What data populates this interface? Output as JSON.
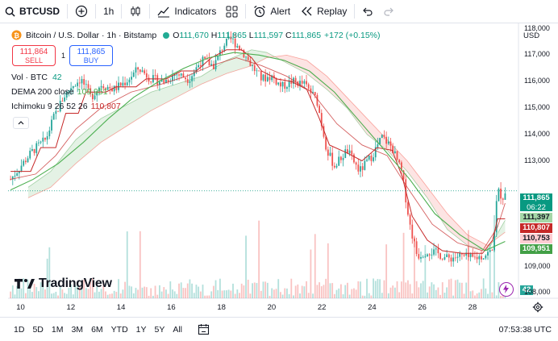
{
  "toolbar": {
    "symbol": "BTCUSD",
    "interval": "1h",
    "indicators_label": "Indicators",
    "alert_label": "Alert",
    "replay_label": "Replay"
  },
  "legend": {
    "instrument": "Bitcoin / U.S. Dollar · 1h · Bitstamp",
    "o_label": "O",
    "o": "111,670",
    "h_label": "H",
    "h": "111,865",
    "l_label": "L",
    "l": "111,597",
    "c_label": "C",
    "c": "111,865",
    "change": "+172 (+0.15%)",
    "vol_label": "Vol · BTC",
    "vol_value": "42",
    "dema_label": "DEMA 200 close",
    "dema_value": "109,951",
    "ichimoku_label": "Ichimoku 9 26 52 26",
    "ichimoku_value": "110,807"
  },
  "trade": {
    "sell_price": "111,864",
    "sell_label": "SELL",
    "spread": "1",
    "buy_price": "111,865",
    "buy_label": "BUY"
  },
  "currency": "USD",
  "watermark": "TradingView",
  "price_tags": {
    "last": "111,865",
    "countdown": "06:22",
    "base": "111,397",
    "conv": "110,807",
    "lag": "110,753",
    "dema": "109,951",
    "vol": "42"
  },
  "bottom": {
    "ranges": [
      "1D",
      "5D",
      "1M",
      "3M",
      "6M",
      "YTD",
      "1Y",
      "5Y",
      "All"
    ],
    "clock": "07:53:38 UTC"
  },
  "colors": {
    "up": "#26a69a",
    "down": "#ef5350",
    "dema": "#4caf50",
    "conv": "#c62828",
    "blue": "#2962ff"
  },
  "chart_data": {
    "type": "candlestick",
    "x_tick_labels": [
      "10",
      "12",
      "14",
      "16",
      "18",
      "20",
      "22",
      "24",
      "26",
      "28"
    ],
    "y_tick_labels": [
      "118,000",
      "117,000",
      "116,000",
      "115,000",
      "114,000",
      "113,000",
      "109,000",
      "108,000"
    ],
    "ylim": [
      107800,
      118200
    ],
    "x_range": [
      9.5,
      29.8
    ],
    "close_path": [
      [
        9.6,
        112.3
      ],
      [
        10.0,
        112.8
      ],
      [
        10.5,
        113.4
      ],
      [
        11.0,
        113.8
      ],
      [
        11.3,
        114.6
      ],
      [
        11.7,
        115.4
      ],
      [
        12.0,
        115.8
      ],
      [
        12.4,
        116.1
      ],
      [
        12.8,
        115.4
      ],
      [
        13.2,
        115.9
      ],
      [
        13.7,
        115.7
      ],
      [
        14.2,
        116.0
      ],
      [
        14.7,
        116.5
      ],
      [
        15.2,
        116.1
      ],
      [
        15.7,
        116.0
      ],
      [
        16.2,
        116.3
      ],
      [
        16.7,
        116.1
      ],
      [
        17.2,
        116.8
      ],
      [
        17.7,
        116.6
      ],
      [
        18.1,
        117.4
      ],
      [
        18.4,
        117.6
      ],
      [
        18.8,
        117.2
      ],
      [
        19.2,
        116.6
      ],
      [
        19.6,
        116.1
      ],
      [
        20.0,
        116.2
      ],
      [
        20.4,
        115.8
      ],
      [
        20.8,
        116.0
      ],
      [
        21.3,
        115.9
      ],
      [
        21.8,
        115.3
      ],
      [
        22.2,
        113.4
      ],
      [
        22.5,
        112.8
      ],
      [
        23.0,
        113.4
      ],
      [
        23.5,
        112.6
      ],
      [
        24.0,
        113.2
      ],
      [
        24.4,
        113.9
      ],
      [
        24.8,
        113.5
      ],
      [
        25.2,
        112.5
      ],
      [
        25.5,
        110.6
      ],
      [
        25.8,
        109.4
      ],
      [
        26.2,
        109.6
      ],
      [
        26.6,
        109.5
      ],
      [
        27.0,
        109.3
      ],
      [
        27.5,
        109.4
      ],
      [
        28.0,
        109.3
      ],
      [
        28.4,
        109.4
      ],
      [
        28.8,
        109.6
      ],
      [
        29.0,
        111.9
      ],
      [
        29.2,
        111.6
      ],
      [
        29.3,
        111.865
      ]
    ],
    "dema_path": [
      [
        9.6,
        111.9
      ],
      [
        10.5,
        112.3
      ],
      [
        11.5,
        112.9
      ],
      [
        12.5,
        113.7
      ],
      [
        13.5,
        114.6
      ],
      [
        14.5,
        115.4
      ],
      [
        15.5,
        116.0
      ],
      [
        16.5,
        116.5
      ],
      [
        17.5,
        116.9
      ],
      [
        18.5,
        117.1
      ],
      [
        19.5,
        117.0
      ],
      [
        20.5,
        116.8
      ],
      [
        21.5,
        116.4
      ],
      [
        22.5,
        115.6
      ],
      [
        23.5,
        114.5
      ],
      [
        24.5,
        113.4
      ],
      [
        25.5,
        112.3
      ],
      [
        26.5,
        111.0
      ],
      [
        27.5,
        110.2
      ],
      [
        28.5,
        109.6
      ],
      [
        29.3,
        109.951
      ]
    ],
    "conversion_path": [
      [
        9.6,
        112.6
      ],
      [
        10.4,
        112.6
      ],
      [
        10.8,
        113.5
      ],
      [
        11.4,
        113.5
      ],
      [
        11.8,
        114.8
      ],
      [
        12.3,
        114.8
      ],
      [
        12.6,
        115.6
      ],
      [
        13.4,
        115.6
      ],
      [
        13.8,
        115.8
      ],
      [
        14.6,
        115.8
      ],
      [
        15.0,
        116.1
      ],
      [
        15.8,
        116.1
      ],
      [
        16.4,
        116.4
      ],
      [
        17.0,
        116.4
      ],
      [
        17.6,
        116.9
      ],
      [
        18.2,
        117.2
      ],
      [
        18.8,
        117.2
      ],
      [
        19.2,
        116.9
      ],
      [
        19.6,
        116.4
      ],
      [
        20.2,
        116.1
      ],
      [
        20.8,
        116.0
      ],
      [
        21.4,
        115.7
      ],
      [
        21.9,
        114.6
      ],
      [
        22.3,
        113.6
      ],
      [
        23.0,
        113.3
      ],
      [
        23.6,
        113.0
      ],
      [
        24.2,
        113.5
      ],
      [
        24.8,
        113.4
      ],
      [
        25.2,
        112.4
      ],
      [
        25.6,
        110.9
      ],
      [
        26.2,
        110.0
      ],
      [
        26.8,
        109.6
      ],
      [
        27.6,
        109.5
      ],
      [
        28.4,
        109.5
      ],
      [
        28.8,
        110.0
      ],
      [
        29.0,
        110.807
      ],
      [
        29.3,
        110.807
      ]
    ],
    "base_path": [
      [
        9.6,
        112.3
      ],
      [
        10.6,
        112.5
      ],
      [
        11.4,
        113.2
      ],
      [
        12.2,
        114.2
      ],
      [
        13.2,
        115.0
      ],
      [
        14.4,
        115.6
      ],
      [
        15.6,
        115.9
      ],
      [
        16.6,
        116.2
      ],
      [
        17.6,
        116.6
      ],
      [
        18.6,
        116.9
      ],
      [
        19.6,
        116.6
      ],
      [
        20.6,
        116.2
      ],
      [
        21.6,
        115.6
      ],
      [
        22.6,
        114.4
      ],
      [
        23.6,
        113.6
      ],
      [
        24.6,
        113.2
      ],
      [
        25.4,
        112.0
      ],
      [
        26.4,
        110.6
      ],
      [
        27.4,
        109.9
      ],
      [
        28.4,
        109.6
      ],
      [
        29.0,
        110.5
      ],
      [
        29.3,
        111.397
      ]
    ],
    "cloud_a_path": [
      [
        10.3,
        112.0
      ],
      [
        11.2,
        112.6
      ],
      [
        12.2,
        113.8
      ],
      [
        13.2,
        114.6
      ],
      [
        14.2,
        115.1
      ],
      [
        15.2,
        115.6
      ],
      [
        16.2,
        115.9
      ],
      [
        17.2,
        116.2
      ],
      [
        18.2,
        116.8
      ],
      [
        19.2,
        117.2
      ],
      [
        19.8,
        117.1
      ],
      [
        20.6,
        116.7
      ],
      [
        21.4,
        116.3
      ],
      [
        22.2,
        115.7
      ],
      [
        23.0,
        115.0
      ],
      [
        23.8,
        114.0
      ],
      [
        24.6,
        113.4
      ],
      [
        25.4,
        112.6
      ],
      [
        26.2,
        111.6
      ],
      [
        27.0,
        110.4
      ],
      [
        27.8,
        109.8
      ],
      [
        28.6,
        109.6
      ],
      [
        29.3,
        110.753
      ]
    ],
    "cloud_b_path": [
      [
        10.3,
        111.6
      ],
      [
        11.2,
        112.0
      ],
      [
        12.2,
        112.9
      ],
      [
        13.2,
        113.7
      ],
      [
        14.2,
        114.3
      ],
      [
        15.2,
        114.9
      ],
      [
        16.2,
        115.4
      ],
      [
        17.2,
        115.9
      ],
      [
        18.2,
        116.3
      ],
      [
        19.2,
        116.6
      ],
      [
        19.8,
        116.9
      ],
      [
        20.6,
        117.0
      ],
      [
        21.4,
        116.8
      ],
      [
        22.2,
        116.2
      ],
      [
        23.0,
        115.4
      ],
      [
        23.8,
        114.6
      ],
      [
        24.6,
        113.8
      ],
      [
        25.4,
        113.0
      ],
      [
        26.2,
        112.0
      ],
      [
        27.0,
        111.0
      ],
      [
        27.8,
        110.2
      ],
      [
        28.6,
        109.8
      ],
      [
        29.3,
        110.3
      ]
    ]
  }
}
